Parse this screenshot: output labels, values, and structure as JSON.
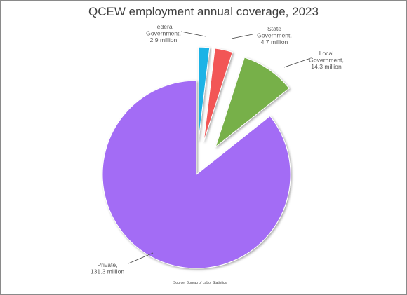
{
  "chart_data": {
    "type": "pie",
    "title": "QCEW employment annual coverage, 2023",
    "source": "Source: Bureau of Labor Statistics",
    "slices": [
      {
        "name": "Federal Government",
        "label_lines": [
          "Federal",
          "Government,",
          "2.9 million"
        ],
        "value": 2.9,
        "color": "#1fb3e6",
        "exploded": true
      },
      {
        "name": "State Government",
        "label_lines": [
          "State",
          "Government,",
          "4.7 million"
        ],
        "value": 4.7,
        "color": "#f25757",
        "exploded": true
      },
      {
        "name": "Local Government",
        "label_lines": [
          "Local",
          "Government,",
          "14.3 million"
        ],
        "value": 14.3,
        "color": "#77b04a",
        "exploded": true
      },
      {
        "name": "Private",
        "label_lines": [
          "Private,",
          "131.3 million"
        ],
        "value": 131.3,
        "color": "#a36cf5",
        "exploded": false
      }
    ],
    "legend": "none",
    "grid": false
  }
}
